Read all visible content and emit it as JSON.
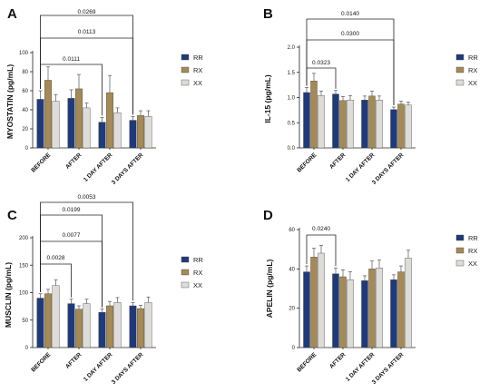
{
  "colors": {
    "RR": "#1f3a7a",
    "RX": "#a58a55",
    "XX": "#dedcd8"
  },
  "chart_data": [
    {
      "type": "bar",
      "panel_letter": "A",
      "ylabel": "MYOSTATIN (pg/mL)",
      "ylim": [
        0,
        100
      ],
      "yticks": [
        0,
        20,
        40,
        60,
        80,
        100
      ],
      "categories": [
        "BEFORE",
        "AFTER",
        "1 DAY AFTER",
        "3 DAYS AFTER"
      ],
      "series": [
        {
          "name": "RR",
          "values": [
            51,
            52,
            27,
            29
          ],
          "errors": [
            9,
            9,
            5,
            4
          ]
        },
        {
          "name": "RX",
          "values": [
            71,
            62,
            58,
            34
          ],
          "errors": [
            14,
            15,
            18,
            5
          ]
        },
        {
          "name": "XX",
          "values": [
            49,
            42,
            37,
            33
          ],
          "errors": [
            7,
            5,
            5,
            6
          ]
        }
      ],
      "legend": "right",
      "comparisons": [
        {
          "label": "0.0269",
          "from": 0,
          "to": 3
        },
        {
          "label": "0.0113",
          "from": 0,
          "to": 3
        },
        {
          "label": "0.0111",
          "from": 0,
          "to": 2
        }
      ]
    },
    {
      "type": "bar",
      "panel_letter": "B",
      "ylabel": "IL-15 (pg/mL)",
      "ylim": [
        0,
        2.0
      ],
      "yticks": [
        0.0,
        0.5,
        1.0,
        1.5,
        2.0
      ],
      "ytick_labels": [
        "0.0",
        "0.5",
        "1.0",
        "1.5",
        "2.0"
      ],
      "categories": [
        "BEFORE",
        "AFTER",
        "1 DAY AFTER",
        "3 DAYS AFTER"
      ],
      "series": [
        {
          "name": "RR",
          "values": [
            1.1,
            1.07,
            0.95,
            0.76
          ],
          "errors": [
            0.1,
            0.07,
            0.08,
            0.05
          ]
        },
        {
          "name": "RX",
          "values": [
            1.33,
            0.94,
            1.03,
            0.87
          ],
          "errors": [
            0.15,
            0.08,
            0.1,
            0.06
          ]
        },
        {
          "name": "XX",
          "values": [
            1.04,
            0.95,
            0.95,
            0.85
          ],
          "errors": [
            0.09,
            0.09,
            0.08,
            0.06
          ]
        }
      ],
      "legend": "right",
      "comparisons": [
        {
          "label": "0.0140",
          "from": 0,
          "to": 3
        },
        {
          "label": "0.0300",
          "from": 0,
          "to": 3
        },
        {
          "label": "0.0323",
          "from": 0,
          "to": 1
        }
      ]
    },
    {
      "type": "bar",
      "panel_letter": "C",
      "ylabel": "MUSCLIN (pg/mL)",
      "ylim": [
        0,
        200
      ],
      "yticks": [
        0,
        50,
        100,
        150,
        200
      ],
      "categories": [
        "BEFORE",
        "AFTER",
        "1 DAY AFTER",
        "3 DAYS AFTER"
      ],
      "series": [
        {
          "name": "RR",
          "values": [
            90,
            80,
            64,
            76
          ],
          "errors": [
            8,
            8,
            6,
            6
          ]
        },
        {
          "name": "RX",
          "values": [
            98,
            70,
            76,
            71
          ],
          "errors": [
            8,
            6,
            8,
            6
          ]
        },
        {
          "name": "XX",
          "values": [
            113,
            80,
            82,
            82
          ],
          "errors": [
            10,
            8,
            9,
            10
          ]
        }
      ],
      "legend": "right",
      "comparisons": [
        {
          "label": "0.0053",
          "from": 0,
          "to": 3
        },
        {
          "label": "0.0199",
          "from": 0,
          "to": 2
        },
        {
          "label": "0.0077",
          "from": 0,
          "to": 2
        },
        {
          "label": "0.0028",
          "from": 0,
          "to": 1
        }
      ]
    },
    {
      "type": "bar",
      "panel_letter": "D",
      "ylabel": "APELIN (pg/mL)",
      "ylim": [
        0,
        60
      ],
      "yticks": [
        0,
        20,
        40,
        60
      ],
      "categories": [
        "BEFORE",
        "AFTER",
        "1 DAY AFTER",
        "3 DAYS AFTER"
      ],
      "series": [
        {
          "name": "RR",
          "values": [
            38.5,
            37.5,
            34,
            34.5
          ],
          "errors": [
            3,
            3,
            2.5,
            2.5
          ]
        },
        {
          "name": "RX",
          "values": [
            46,
            36,
            40,
            38.5
          ],
          "errors": [
            4.5,
            3.5,
            4,
            3
          ]
        },
        {
          "name": "XX",
          "values": [
            48,
            34.5,
            40.5,
            45.5
          ],
          "errors": [
            4,
            4,
            4,
            4
          ]
        }
      ],
      "legend": "right",
      "comparisons": [
        {
          "label": "0.0240",
          "from": 0,
          "to": 1
        }
      ]
    }
  ]
}
